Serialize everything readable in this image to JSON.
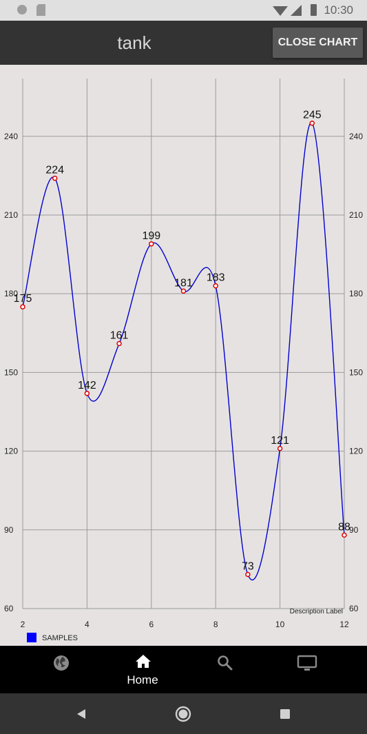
{
  "status_bar": {
    "time": "10:30"
  },
  "app_bar": {
    "title": "tank",
    "close_label": "CLOSE CHART"
  },
  "chart_data": {
    "type": "line",
    "x": [
      2,
      3,
      4,
      5,
      6,
      7,
      8,
      9,
      10,
      11,
      12
    ],
    "series": [
      {
        "name": "SAMPLES",
        "values": [
          175,
          224,
          142,
          161,
          199,
          181,
          183,
          73,
          121,
          245,
          88
        ]
      }
    ],
    "xlim": [
      2,
      12
    ],
    "ylim": [
      60,
      262
    ],
    "x_ticks": [
      2,
      4,
      6,
      8,
      10,
      12
    ],
    "y_ticks": [
      60,
      90,
      120,
      150,
      180,
      210,
      240
    ],
    "smooth": true,
    "grid": true,
    "dual_y_axis": true,
    "legend_position": "bottom-left",
    "description": "Description Label",
    "colors": {
      "line": "#0000cc",
      "points": "#dd0000",
      "legend": "#0000ff"
    }
  },
  "bottom_nav": {
    "items": [
      {
        "icon": "globe-icon",
        "label": ""
      },
      {
        "icon": "home-icon",
        "label": "Home"
      },
      {
        "icon": "search-icon",
        "label": ""
      },
      {
        "icon": "monitor-icon",
        "label": ""
      }
    ]
  },
  "system_nav": {
    "buttons": [
      "back-icon",
      "home-circle-icon",
      "recents-icon"
    ]
  }
}
